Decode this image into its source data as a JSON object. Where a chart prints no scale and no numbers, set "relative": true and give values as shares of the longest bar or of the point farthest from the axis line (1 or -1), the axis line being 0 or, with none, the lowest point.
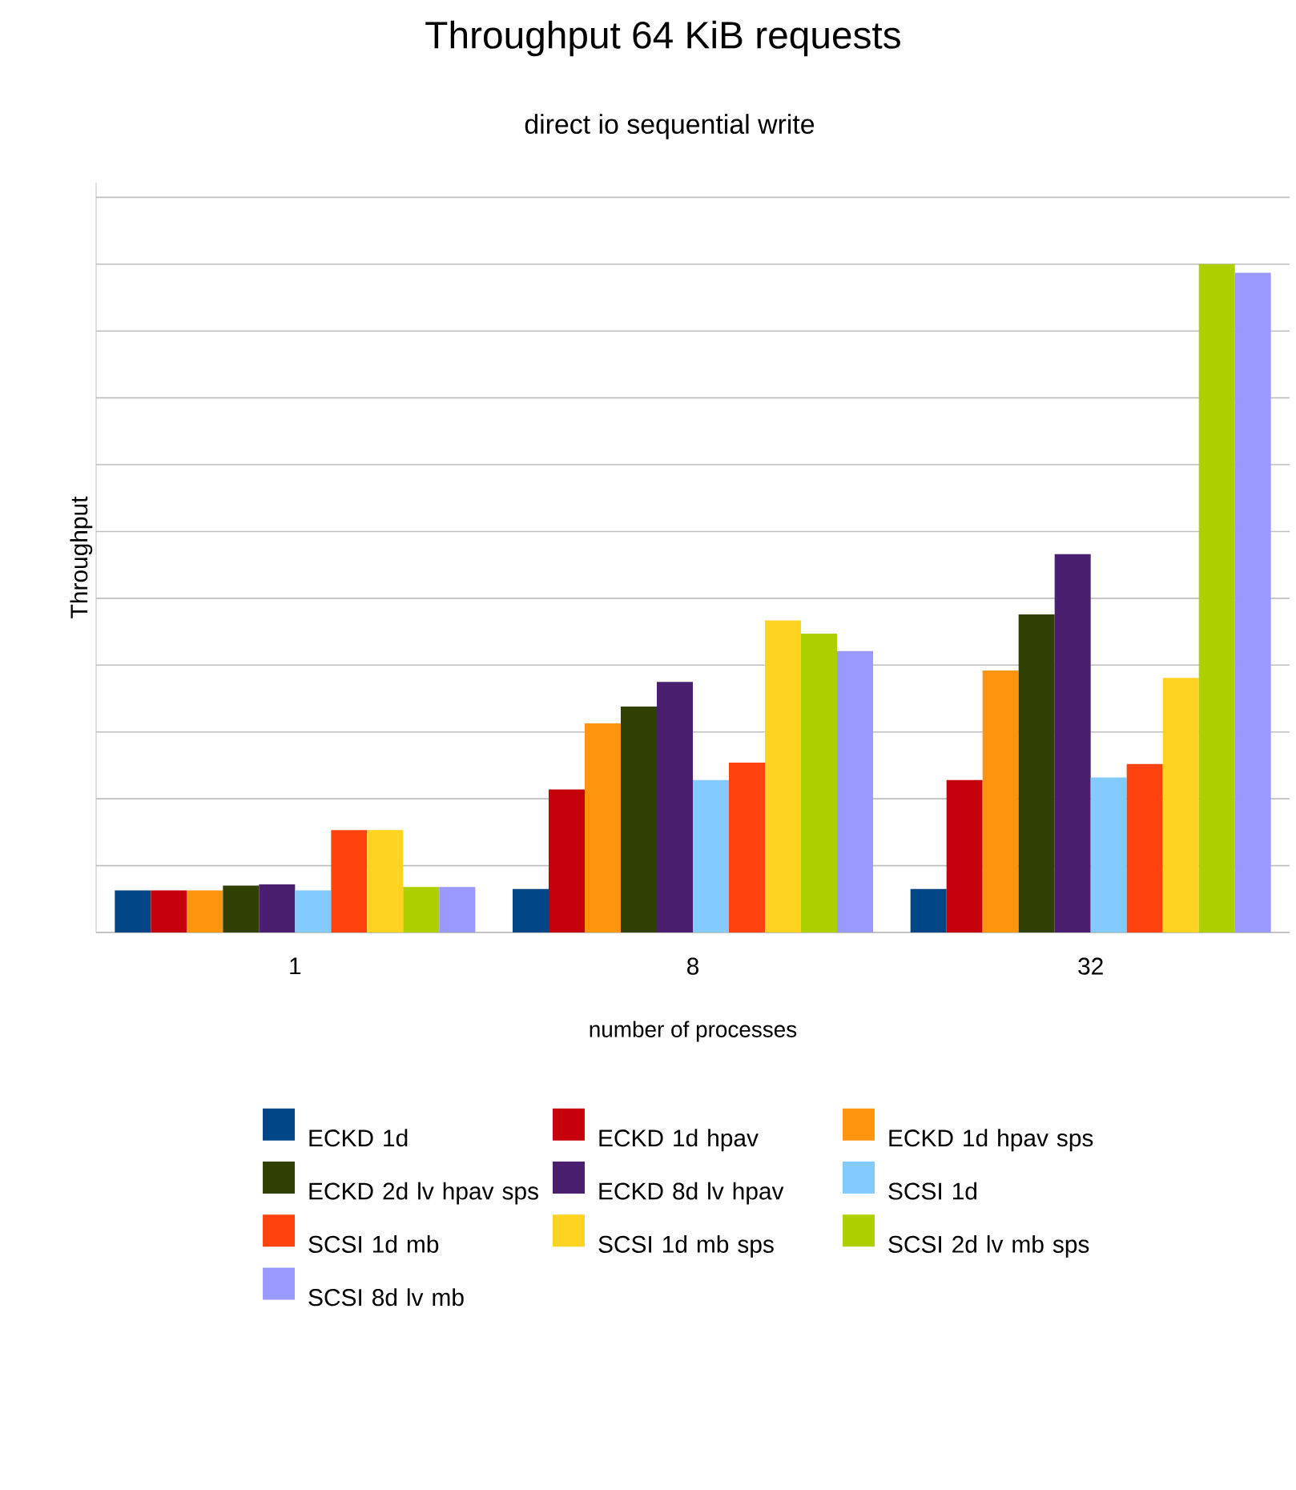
{
  "chart_data": {
    "type": "bar",
    "title": "Throughput 64 KiB requests",
    "subtitle": "direct io sequential write",
    "xlabel": "number of processes",
    "ylabel": "Throughput",
    "relative": true,
    "grid": "y",
    "legend": "bottom",
    "categories": [
      "1",
      "8",
      "32"
    ],
    "series": [
      {
        "name": "ECKD 1d",
        "color": "#004586",
        "values": [
          0.063,
          0.065,
          0.065
        ]
      },
      {
        "name": "ECKD 1d hpav",
        "color": "#c5000b",
        "values": [
          0.063,
          0.214,
          0.228
        ]
      },
      {
        "name": "ECKD 1d hpav sps",
        "color": "#ff950e",
        "values": [
          0.063,
          0.313,
          0.392
        ]
      },
      {
        "name": "ECKD 2d lv hpav sps",
        "color": "#314004",
        "values": [
          0.07,
          0.338,
          0.476
        ]
      },
      {
        "name": "ECKD 8d lv hpav",
        "color": "#4b1f6f",
        "values": [
          0.072,
          0.375,
          0.566
        ]
      },
      {
        "name": "SCSI 1d",
        "color": "#83caff",
        "values": [
          0.063,
          0.228,
          0.232
        ]
      },
      {
        "name": "SCSI 1d mb",
        "color": "#ff420e",
        "values": [
          0.153,
          0.254,
          0.252
        ]
      },
      {
        "name": "SCSI 1d mb sps",
        "color": "#ffd320",
        "values": [
          0.153,
          0.467,
          0.381
        ]
      },
      {
        "name": "SCSI 2d lv mb sps",
        "color": "#aecf00",
        "values": [
          0.068,
          0.447,
          1.0
        ]
      },
      {
        "name": "SCSI 8d lv mb",
        "color": "#9999ff",
        "values": [
          0.068,
          0.421,
          0.987
        ]
      }
    ]
  }
}
